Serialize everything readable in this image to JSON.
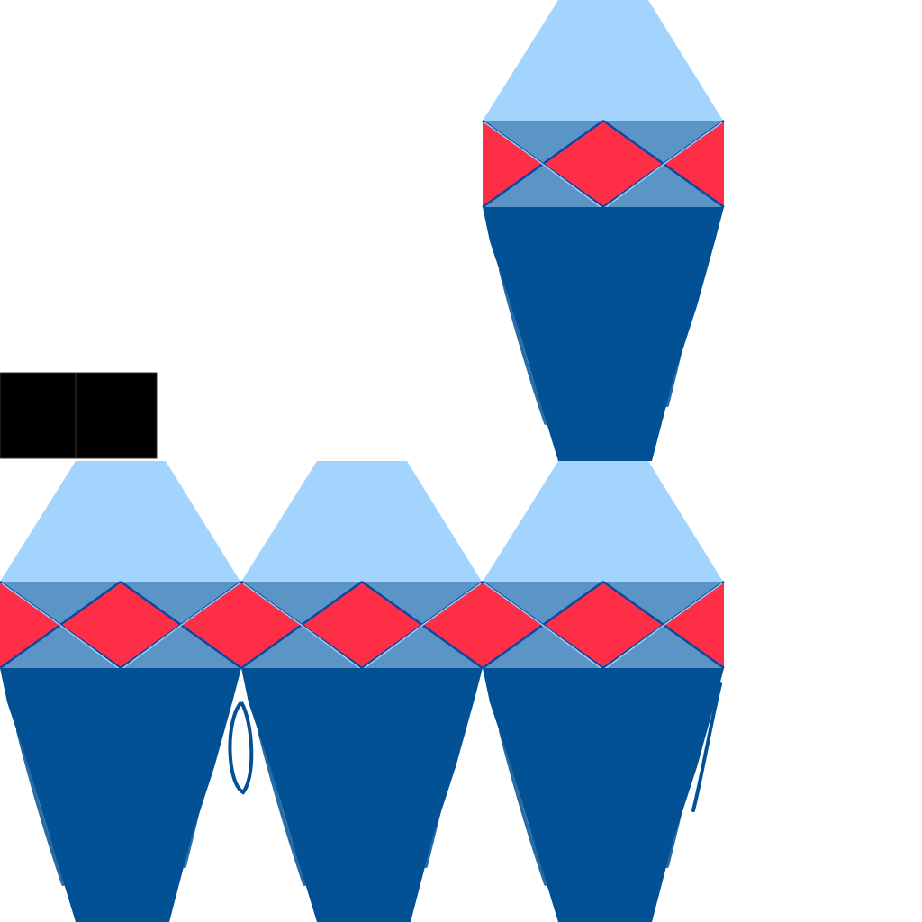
{
  "scene": {
    "background": "#ffffff",
    "grid": {
      "columns": 4,
      "rows": 2
    },
    "tiles": [
      {
        "column": 2,
        "row": 0,
        "kind": "vase-tile"
      },
      {
        "column": 0,
        "row": 1,
        "kind": "vase-tile"
      },
      {
        "column": 1,
        "row": 1,
        "kind": "vase-tile"
      },
      {
        "column": 2,
        "row": 1,
        "kind": "vase-tile"
      }
    ],
    "markers": [
      {
        "column": 0,
        "row": 1,
        "kind": "black-block"
      }
    ]
  },
  "palette": {
    "neck": "#a3d4fd",
    "band": "#5b95c6",
    "diamond": "#fe2e47",
    "body": "#025195",
    "outline": "#0d47a1",
    "band_light_line": "#b3d6f5",
    "marker": "#000000"
  }
}
